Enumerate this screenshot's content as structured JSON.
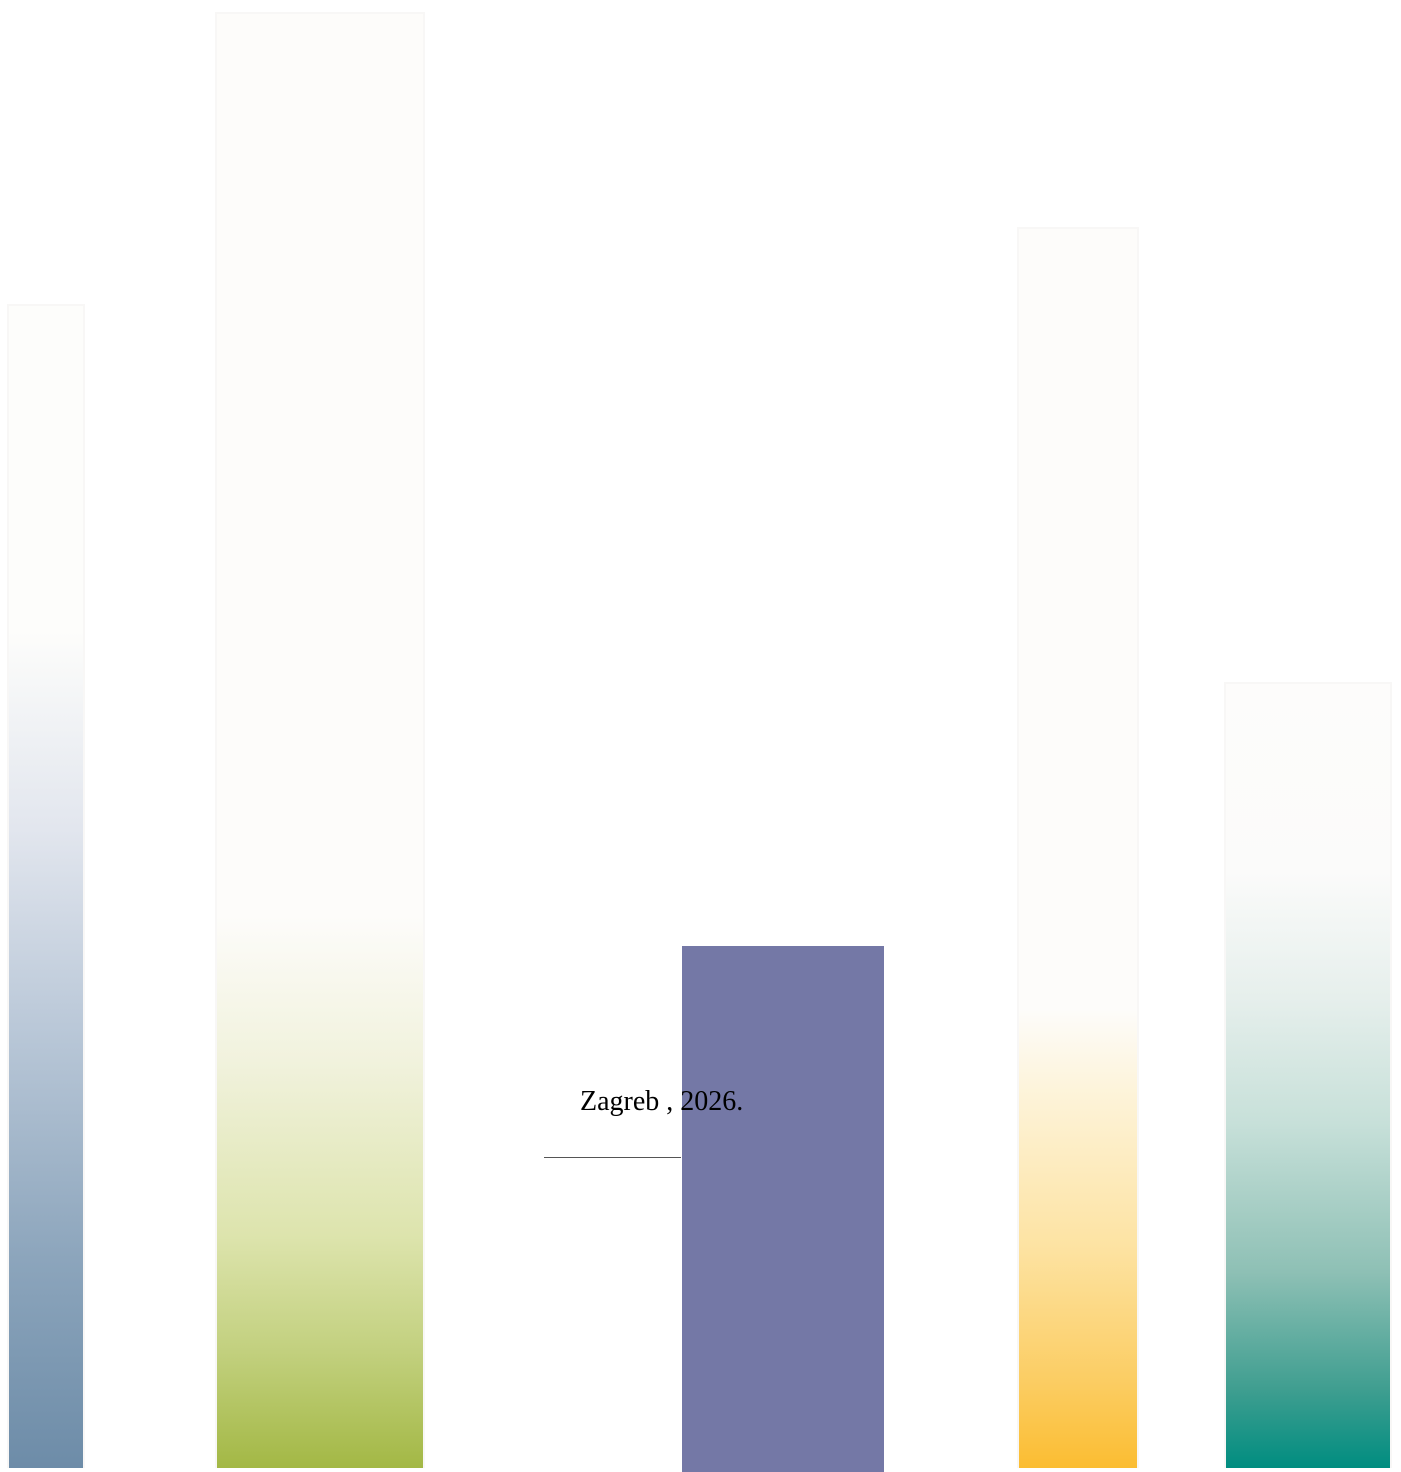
{
  "document": {
    "place": "Zagreb",
    "year_suffix": ", 2026."
  },
  "decoration": {
    "bars": [
      {
        "name": "slate-blue-gradient-bar",
        "color": "#6d8ca8"
      },
      {
        "name": "olive-green-gradient-bar",
        "color": "#a3b845"
      },
      {
        "name": "purple-solid-bar",
        "color": "#7478a6"
      },
      {
        "name": "amber-gradient-bar",
        "color": "#fbbd32"
      },
      {
        "name": "teal-gradient-bar",
        "color": "#008d80"
      }
    ]
  }
}
